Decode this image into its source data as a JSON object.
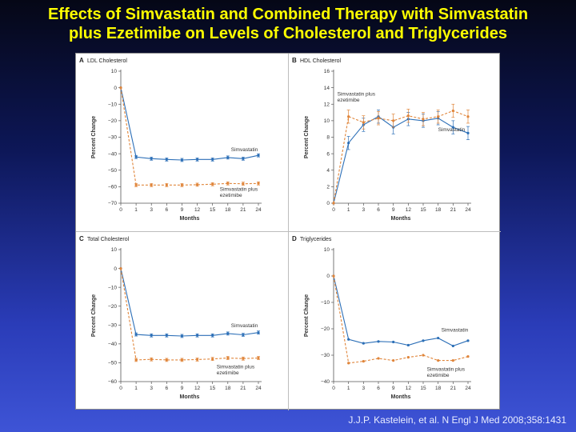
{
  "slide": {
    "title_line1": "Effects of Simvastatin and Combined Therapy with Simvastatin",
    "title_line2": "plus Ezetimibe on Levels of Cholesterol and Triglycerides",
    "citation": "J.J.P. Kastelein, et al. N Engl J Med 2008;358:1431"
  },
  "colors": {
    "simvastatin": "#2c6fb7",
    "combined": "#e0853a",
    "axis": "#555555",
    "panel_divider": "#bdbdbd"
  },
  "chart_data": [
    {
      "type": "line",
      "panel_letter": "A",
      "title": "LDL Cholesterol",
      "xlabel": "Months",
      "ylabel": "Percent Change",
      "x": [
        0,
        1,
        3,
        6,
        9,
        12,
        15,
        18,
        21,
        24
      ],
      "x_ticks": [
        "0",
        "1",
        "3",
        "6",
        "9",
        "12",
        "15",
        "18",
        "21",
        "24"
      ],
      "ylim": [
        -70,
        10
      ],
      "y_ticks": [
        10,
        0,
        -10,
        -20,
        -30,
        -40,
        -50,
        -60,
        -70
      ],
      "grid": false,
      "error_bars": true,
      "series": [
        {
          "name": "Simvastatin",
          "style": "solid",
          "values": [
            0,
            -42,
            -43,
            -43.5,
            -43.8,
            -43.5,
            -43.5,
            -42.3,
            -43,
            -41
          ]
        },
        {
          "name": "Simvastatin plus ezetimibe",
          "style": "dashed",
          "values": [
            0,
            -59,
            -59,
            -59,
            -59,
            -58.8,
            -58.5,
            -58,
            -58.2,
            -58
          ]
        }
      ],
      "annotations": [
        {
          "series": 0,
          "lines": [
            "Simvastatin"
          ]
        },
        {
          "series": 1,
          "lines": [
            "Simvastatin plus",
            "ezetimibe"
          ]
        }
      ]
    },
    {
      "type": "line",
      "panel_letter": "B",
      "title": "HDL Cholesterol",
      "xlabel": "Months",
      "ylabel": "Percent Change",
      "x": [
        0,
        1,
        3,
        6,
        9,
        12,
        15,
        18,
        21,
        24
      ],
      "x_ticks": [
        "0",
        "1",
        "3",
        "6",
        "9",
        "12",
        "15",
        "18",
        "21",
        "24"
      ],
      "ylim": [
        0,
        16
      ],
      "y_ticks": [
        16,
        14,
        12,
        10,
        8,
        6,
        4,
        2,
        0
      ],
      "grid": false,
      "error_bars": true,
      "series": [
        {
          "name": "Simvastatin",
          "style": "solid",
          "values": [
            0,
            7.3,
            9.5,
            10.5,
            9.2,
            10.2,
            10,
            10.3,
            9.2,
            8.5
          ]
        },
        {
          "name": "Simvastatin plus ezetimibe",
          "style": "dashed",
          "values": [
            0,
            10.5,
            9.8,
            10.3,
            10,
            10.6,
            10.2,
            10.5,
            11.2,
            10.5
          ]
        }
      ],
      "annotations": [
        {
          "series": 1,
          "lines": [
            "Simvastatin plus",
            "ezetimibe"
          ]
        },
        {
          "series": 0,
          "lines": [
            "Simvastatin"
          ]
        }
      ]
    },
    {
      "type": "line",
      "panel_letter": "C",
      "title": "Total Cholesterol",
      "xlabel": "Months",
      "ylabel": "Percent Change",
      "x": [
        0,
        1,
        3,
        6,
        9,
        12,
        15,
        18,
        21,
        24
      ],
      "x_ticks": [
        "0",
        "1",
        "3",
        "6",
        "9",
        "12",
        "15",
        "18",
        "21",
        "24"
      ],
      "ylim": [
        -60,
        10
      ],
      "y_ticks": [
        10,
        0,
        -10,
        -20,
        -30,
        -40,
        -50,
        -60
      ],
      "grid": false,
      "error_bars": true,
      "series": [
        {
          "name": "Simvastatin",
          "style": "solid",
          "values": [
            0,
            -35,
            -35.5,
            -35.5,
            -35.8,
            -35.5,
            -35.5,
            -34.5,
            -35.2,
            -34
          ]
        },
        {
          "name": "Simvastatin plus ezetimibe",
          "style": "dashed",
          "values": [
            0,
            -48.5,
            -48.2,
            -48.5,
            -48.5,
            -48.3,
            -48,
            -47.5,
            -47.8,
            -47.5
          ]
        }
      ],
      "annotations": [
        {
          "series": 0,
          "lines": [
            "Simvastatin"
          ]
        },
        {
          "series": 1,
          "lines": [
            "Simvastatin plus",
            "ezetimibe"
          ]
        }
      ]
    },
    {
      "type": "line",
      "panel_letter": "D",
      "title": "Triglycerides",
      "xlabel": "Months",
      "ylabel": "Percent Change",
      "x": [
        0,
        1,
        3,
        6,
        9,
        12,
        15,
        18,
        21,
        24
      ],
      "x_ticks": [
        "0",
        "1",
        "3",
        "6",
        "9",
        "12",
        "15",
        "18",
        "21",
        "24"
      ],
      "ylim": [
        -40,
        10
      ],
      "y_ticks": [
        10,
        0,
        -10,
        -20,
        -30,
        -40
      ],
      "grid": false,
      "error_bars": false,
      "series": [
        {
          "name": "Simvastatin",
          "style": "solid",
          "values": [
            0,
            -24,
            -25.5,
            -24.8,
            -25,
            -26.2,
            -24.5,
            -23.5,
            -26.5,
            -24.5
          ]
        },
        {
          "name": "Simvastatin plus ezetimibe",
          "style": "dashed",
          "values": [
            0,
            -33,
            -32.3,
            -31.2,
            -32,
            -30.8,
            -30,
            -32,
            -32,
            -30.5
          ]
        }
      ],
      "annotations": [
        {
          "series": 0,
          "lines": [
            "Simvastatin"
          ]
        },
        {
          "series": 1,
          "lines": [
            "Simvastatin plus",
            "ezetimibe"
          ]
        }
      ]
    }
  ]
}
